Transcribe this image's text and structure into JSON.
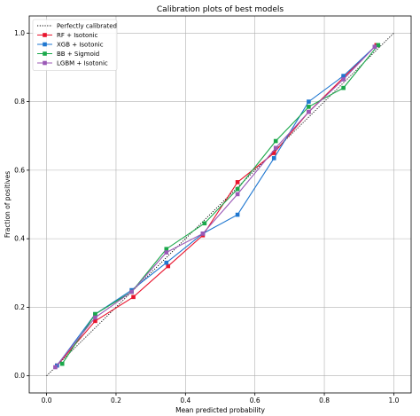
{
  "chart_data": {
    "type": "line",
    "title": "Calibration plots of best models",
    "xlabel": "Mean predicted probability",
    "ylabel": "Fraction of positives",
    "xlim": [
      -0.05,
      1.05
    ],
    "ylim": [
      -0.05,
      1.05
    ],
    "xticks": [
      "0.0",
      "0.2",
      "0.4",
      "0.6",
      "0.8",
      "1.0"
    ],
    "yticks": [
      "0.0",
      "0.2",
      "0.4",
      "0.6",
      "0.8",
      "1.0"
    ],
    "grid": true,
    "legend_position": "upper left",
    "reference_line": {
      "name": "Perfectly calibrated",
      "x": [
        0,
        1
      ],
      "y": [
        0,
        1
      ],
      "color": "#000000",
      "style": "dotted"
    },
    "series": [
      {
        "name": "RF + Isotonic",
        "color": "#e8132c",
        "marker": "square",
        "x": [
          0.03,
          0.14,
          0.25,
          0.35,
          0.45,
          0.55,
          0.655,
          0.755,
          0.855,
          0.95
        ],
        "y": [
          0.03,
          0.16,
          0.23,
          0.32,
          0.41,
          0.565,
          0.65,
          0.77,
          0.87,
          0.965
        ]
      },
      {
        "name": "XGB + Isotonic",
        "color": "#1f77d0",
        "marker": "square",
        "x": [
          0.03,
          0.14,
          0.245,
          0.345,
          0.45,
          0.55,
          0.655,
          0.755,
          0.855,
          0.945
        ],
        "y": [
          0.03,
          0.18,
          0.25,
          0.33,
          0.415,
          0.47,
          0.635,
          0.8,
          0.875,
          0.96
        ]
      },
      {
        "name": "BB + Sigmoid",
        "color": "#1aa84a",
        "marker": "square",
        "x": [
          0.045,
          0.14,
          0.245,
          0.345,
          0.455,
          0.55,
          0.66,
          0.755,
          0.855,
          0.955
        ],
        "y": [
          0.035,
          0.18,
          0.245,
          0.37,
          0.445,
          0.545,
          0.685,
          0.785,
          0.84,
          0.965
        ]
      },
      {
        "name": "LGBM + Isotonic",
        "color": "#9b59b6",
        "marker": "square",
        "x": [
          0.025,
          0.14,
          0.245,
          0.345,
          0.45,
          0.55,
          0.66,
          0.755,
          0.855,
          0.945
        ],
        "y": [
          0.025,
          0.17,
          0.245,
          0.36,
          0.415,
          0.53,
          0.665,
          0.77,
          0.865,
          0.96
        ]
      }
    ]
  }
}
